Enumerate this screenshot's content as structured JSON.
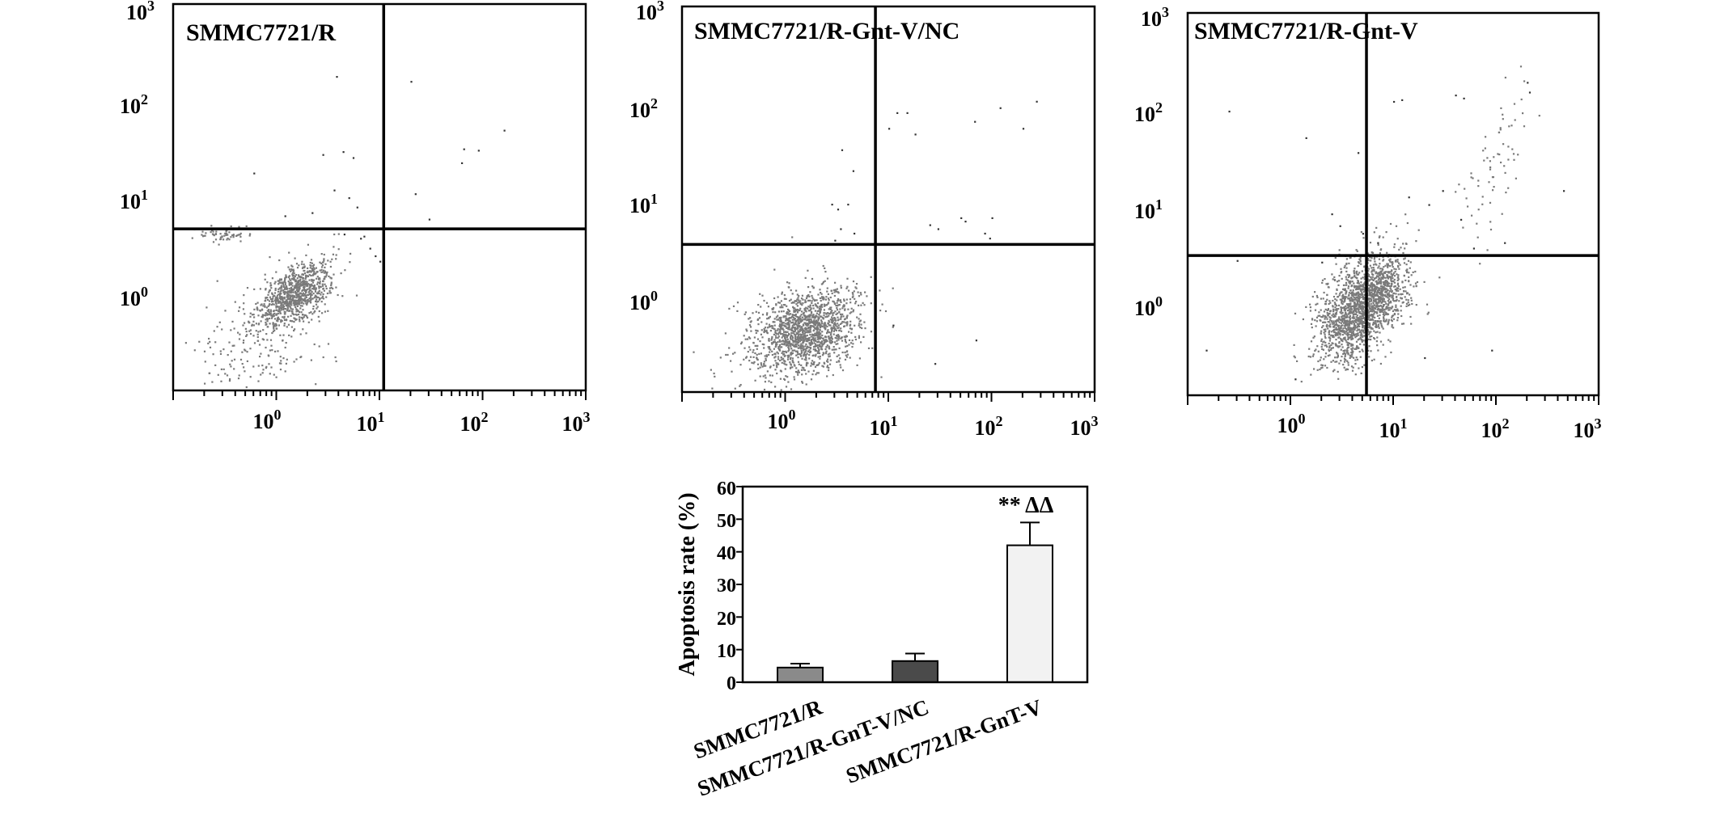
{
  "chart_data": [
    {
      "type": "scatter",
      "title": "SMMC7721/R",
      "x_scale": "log",
      "y_scale": "log",
      "xlim": [
        0.1,
        1000
      ],
      "ylim": [
        0.1,
        1000
      ],
      "x_ticks": [
        {
          "base": "10",
          "exp": "0"
        },
        {
          "base": "10",
          "exp": "1"
        },
        {
          "base": "10",
          "exp": "2"
        },
        {
          "base": "10",
          "exp": "3"
        }
      ],
      "y_ticks": [
        {
          "base": "10",
          "exp": "0"
        },
        {
          "base": "10",
          "exp": "1"
        },
        {
          "base": "10",
          "exp": "2"
        },
        {
          "base": "10",
          "exp": "3"
        }
      ],
      "quadrant_gate": {
        "x": 11,
        "y": 4.7
      },
      "clusters": [
        {
          "cx": 1.5,
          "cy": 1.0,
          "sx": 0.17,
          "sy": 0.17,
          "rho": 0.55,
          "n": 900
        },
        {
          "cx": 0.7,
          "cy": 0.35,
          "sx": 0.3,
          "sy": 0.3,
          "rho": 0.2,
          "n": 200
        },
        {
          "cx": 0.3,
          "cy": 4.2,
          "sx": 0.15,
          "sy": 0.04,
          "rho": 0,
          "n": 60
        }
      ],
      "outliers": [
        [
          3.8,
          180
        ],
        [
          20,
          160
        ],
        [
          2.8,
          28
        ],
        [
          4.4,
          30
        ],
        [
          5.5,
          26
        ],
        [
          3.6,
          12
        ],
        [
          5,
          10
        ],
        [
          6,
          8
        ],
        [
          0.6,
          18
        ],
        [
          7,
          4
        ],
        [
          8,
          3
        ],
        [
          9,
          2.5
        ],
        [
          10,
          2.2
        ],
        [
          22,
          11
        ],
        [
          30,
          6
        ],
        [
          65,
          32
        ],
        [
          90,
          31
        ],
        [
          160,
          50
        ],
        [
          62,
          23
        ],
        [
          4.5,
          4.2
        ],
        [
          6.5,
          3.8
        ],
        [
          1.2,
          6.5
        ],
        [
          2.2,
          7
        ]
      ]
    },
    {
      "type": "scatter",
      "title": "SMMC7721/R-Gnt-V/NC",
      "x_scale": "log",
      "y_scale": "log",
      "xlim": [
        0.1,
        1000
      ],
      "ylim": [
        0.1,
        1000
      ],
      "x_ticks": [
        {
          "base": "10",
          "exp": "0"
        },
        {
          "base": "10",
          "exp": "1"
        },
        {
          "base": "10",
          "exp": "2"
        },
        {
          "base": "10",
          "exp": "3"
        }
      ],
      "y_ticks": [
        {
          "base": "10",
          "exp": "0"
        },
        {
          "base": "10",
          "exp": "1"
        },
        {
          "base": "10",
          "exp": "2"
        },
        {
          "base": "10",
          "exp": "3"
        }
      ],
      "quadrant_gate": {
        "x": 7.5,
        "y": 3.4
      },
      "clusters": [
        {
          "cx": 1.6,
          "cy": 0.45,
          "sx": 0.25,
          "sy": 0.22,
          "rho": 0.3,
          "n": 1400
        },
        {
          "cx": 0.9,
          "cy": 0.3,
          "sx": 0.35,
          "sy": 0.3,
          "rho": 0.1,
          "n": 150
        }
      ],
      "outliers": [
        [
          12,
          80
        ],
        [
          15,
          80
        ],
        [
          10,
          55
        ],
        [
          18,
          48
        ],
        [
          3.5,
          33
        ],
        [
          4.5,
          20
        ],
        [
          68,
          65
        ],
        [
          120,
          90
        ],
        [
          270,
          105
        ],
        [
          200,
          55
        ],
        [
          2.8,
          9
        ],
        [
          3.2,
          8
        ],
        [
          4,
          9
        ],
        [
          3.4,
          5
        ],
        [
          4.6,
          4.5
        ],
        [
          25,
          5.5
        ],
        [
          30,
          5
        ],
        [
          50,
          6.5
        ],
        [
          55,
          6
        ],
        [
          100,
          6.5
        ],
        [
          85,
          4.5
        ],
        [
          95,
          4
        ],
        [
          11,
          0.5
        ],
        [
          28,
          0.2
        ],
        [
          70,
          0.35
        ],
        [
          3,
          3.8
        ]
      ]
    },
    {
      "type": "scatter",
      "title": "SMMC7721/R-Gnt-V",
      "x_scale": "log",
      "y_scale": "log",
      "xlim": [
        0.1,
        1000
      ],
      "ylim": [
        0.1,
        1000
      ],
      "x_ticks": [
        {
          "base": "10",
          "exp": "0"
        },
        {
          "base": "10",
          "exp": "1"
        },
        {
          "base": "10",
          "exp": "2"
        },
        {
          "base": "10",
          "exp": "3"
        }
      ],
      "y_ticks": [
        {
          "base": "10",
          "exp": "0"
        },
        {
          "base": "10",
          "exp": "1"
        },
        {
          "base": "10",
          "exp": "2"
        },
        {
          "base": "10",
          "exp": "3"
        }
      ],
      "quadrant_gate": {
        "x": 5.5,
        "y": 2.9
      },
      "clusters": [
        {
          "cx": 4.5,
          "cy": 0.8,
          "sx": 0.2,
          "sy": 0.28,
          "rho": 0.45,
          "n": 1600
        },
        {
          "cx": 8,
          "cy": 1.3,
          "sx": 0.15,
          "sy": 0.18,
          "rho": 0.3,
          "n": 300
        },
        {
          "cx": 90,
          "cy": 25,
          "sx": 0.15,
          "sy": 0.35,
          "rho": 0.6,
          "n": 70
        }
      ],
      "outliers": [
        [
          0.25,
          95
        ],
        [
          1.4,
          50
        ],
        [
          4.5,
          35
        ],
        [
          10,
          120
        ],
        [
          12,
          125
        ],
        [
          40,
          140
        ],
        [
          48,
          130
        ],
        [
          200,
          190
        ],
        [
          210,
          150
        ],
        [
          450,
          14
        ],
        [
          2.5,
          8
        ],
        [
          3,
          6
        ],
        [
          5,
          5
        ],
        [
          7,
          4
        ],
        [
          14,
          12
        ],
        [
          22,
          10
        ],
        [
          30,
          14
        ],
        [
          45,
          7
        ],
        [
          60,
          3.5
        ],
        [
          120,
          4
        ],
        [
          0.3,
          2.6
        ],
        [
          0.15,
          0.3
        ],
        [
          1.1,
          0.15
        ],
        [
          20,
          0.25
        ],
        [
          90,
          0.3
        ],
        [
          2,
          2.5
        ]
      ]
    },
    {
      "type": "bar",
      "categories": [
        "SMMC7721/R",
        "SMMC7721/R-GnT-V/NC",
        "SMMC7721/R-GnT-V"
      ],
      "values": [
        4.5,
        6.5,
        42
      ],
      "errors": [
        1.2,
        2.3,
        7
      ],
      "annotations": [
        "",
        "",
        "** ΔΔ"
      ],
      "ylabel": "Apoptosis rate (%)",
      "ylim": [
        0,
        60
      ],
      "yticks": [
        "0",
        "10",
        "20",
        "30",
        "40",
        "50",
        "60"
      ],
      "colors": [
        "#8a8a8a",
        "#4a4a4a",
        "#f2f2f2"
      ]
    }
  ]
}
